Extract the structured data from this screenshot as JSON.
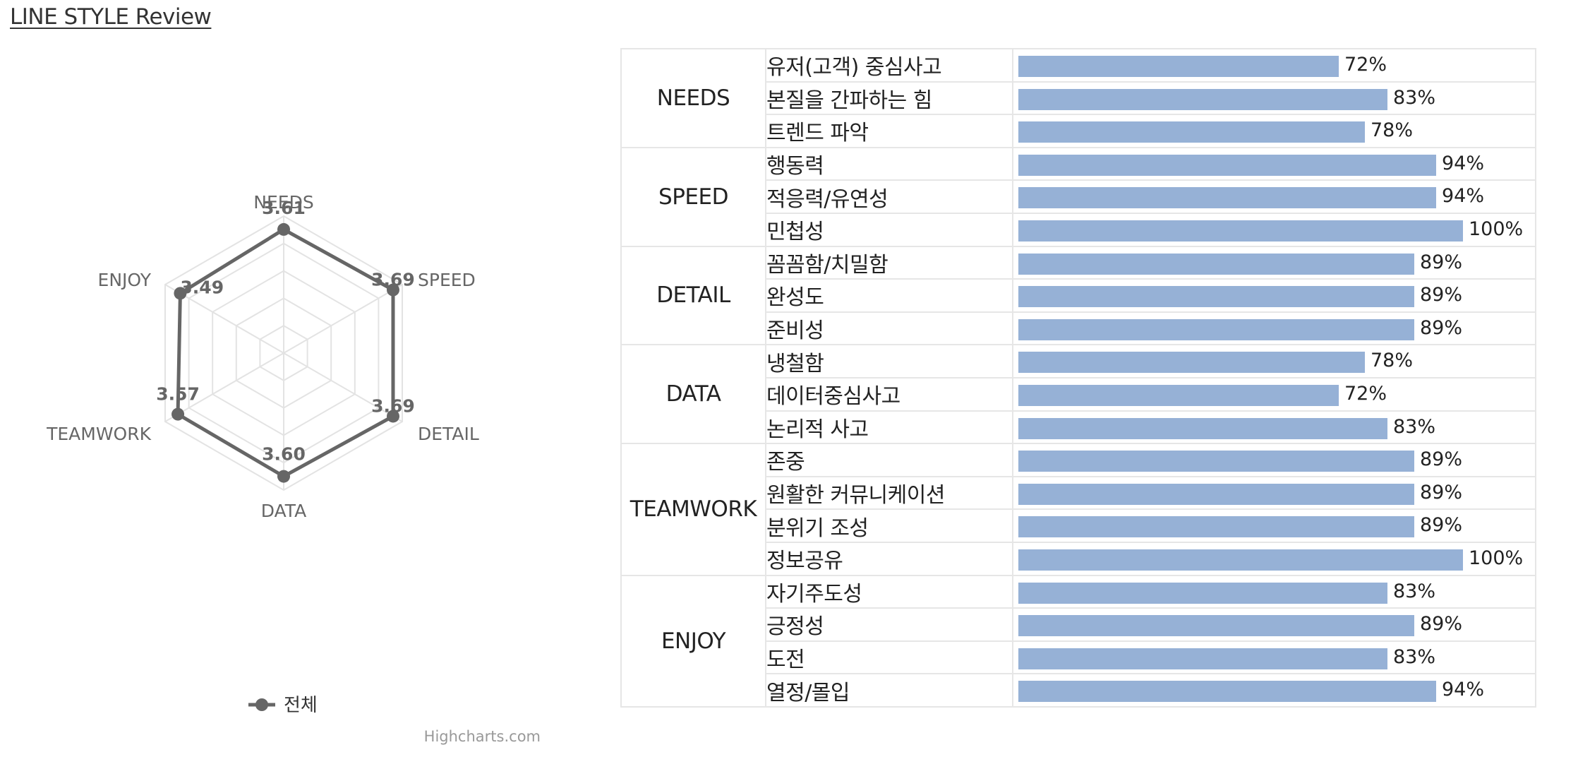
{
  "title": "LINE STYLE Review",
  "chart_data": [
    {
      "type": "radar",
      "categories": [
        "NEEDS",
        "SPEED",
        "DETAIL",
        "DATA",
        "TEAMWORK",
        "ENJOY"
      ],
      "series": [
        {
          "name": "전체",
          "values": [
            3.61,
            3.69,
            3.69,
            3.6,
            3.57,
            3.49
          ],
          "color": "#666666"
        }
      ],
      "ylim": [
        0,
        4
      ],
      "grid": true,
      "legend": "bottom-center",
      "credits": "Highcharts.com"
    },
    {
      "type": "bar",
      "orientation": "horizontal",
      "unit": "%",
      "bar_color": "#96b1d6",
      "groups": [
        {
          "name": "NEEDS",
          "items": [
            {
              "label": "유저(고객) 중심사고",
              "value": 72
            },
            {
              "label": "본질을 간파하는 힘",
              "value": 83
            },
            {
              "label": "트렌드 파악",
              "value": 78
            }
          ]
        },
        {
          "name": "SPEED",
          "items": [
            {
              "label": "행동력",
              "value": 94
            },
            {
              "label": "적응력/유연성",
              "value": 94
            },
            {
              "label": "민첩성",
              "value": 100
            }
          ]
        },
        {
          "name": "DETAIL",
          "items": [
            {
              "label": "꼼꼼함/치밀함",
              "value": 89
            },
            {
              "label": "완성도",
              "value": 89
            },
            {
              "label": "준비성",
              "value": 89
            }
          ]
        },
        {
          "name": "DATA",
          "items": [
            {
              "label": "냉철함",
              "value": 78
            },
            {
              "label": "데이터중심사고",
              "value": 72
            },
            {
              "label": "논리적 사고",
              "value": 83
            }
          ]
        },
        {
          "name": "TEAMWORK",
          "items": [
            {
              "label": "존중",
              "value": 89
            },
            {
              "label": "원활한 커뮤니케이션",
              "value": 89
            },
            {
              "label": "분위기 조성",
              "value": 89
            },
            {
              "label": "정보공유",
              "value": 100
            }
          ]
        },
        {
          "name": "ENJOY",
          "items": [
            {
              "label": "자기주도성",
              "value": 83
            },
            {
              "label": "긍정성",
              "value": 89
            },
            {
              "label": "도전",
              "value": 83
            },
            {
              "label": "열정/몰입",
              "value": 94
            }
          ]
        }
      ]
    }
  ]
}
